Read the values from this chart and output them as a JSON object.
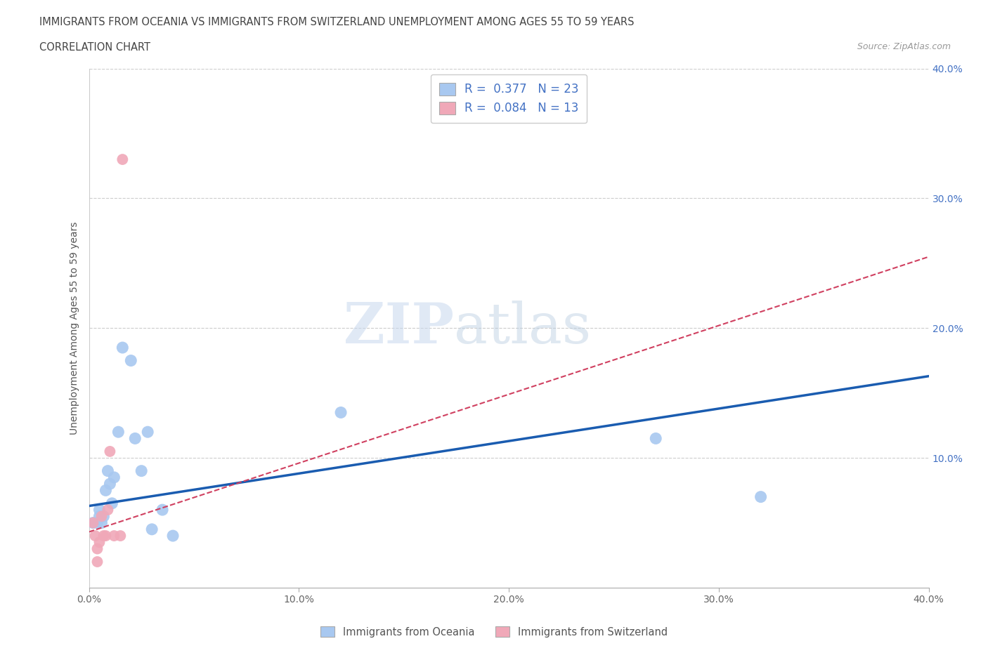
{
  "title_line1": "IMMIGRANTS FROM OCEANIA VS IMMIGRANTS FROM SWITZERLAND UNEMPLOYMENT AMONG AGES 55 TO 59 YEARS",
  "title_line2": "CORRELATION CHART",
  "source_text": "Source: ZipAtlas.com",
  "ylabel": "Unemployment Among Ages 55 to 59 years",
  "xlim": [
    0.0,
    0.4
  ],
  "ylim": [
    0.0,
    0.4
  ],
  "xtick_labels": [
    "0.0%",
    "10.0%",
    "20.0%",
    "30.0%",
    "40.0%"
  ],
  "xtick_vals": [
    0.0,
    0.1,
    0.2,
    0.3,
    0.4
  ],
  "right_ytick_labels": [
    "10.0%",
    "20.0%",
    "30.0%",
    "40.0%"
  ],
  "right_ytick_vals": [
    0.1,
    0.2,
    0.3,
    0.4
  ],
  "oceania_color": "#a8c8f0",
  "switzerland_color": "#f0a8b8",
  "oceania_R": 0.377,
  "oceania_N": 23,
  "switzerland_R": 0.084,
  "switzerland_N": 13,
  "oceania_line_color": "#1a5cb0",
  "switzerland_line_color": "#d04060",
  "watermark_zip": "ZIP",
  "watermark_atlas": "atlas",
  "watermark_color_zip": "#c8d8ee",
  "watermark_color_atlas": "#b8cce0",
  "legend_R_color": "#4472c4",
  "oceania_x": [
    0.002,
    0.004,
    0.005,
    0.005,
    0.006,
    0.007,
    0.008,
    0.009,
    0.01,
    0.011,
    0.012,
    0.014,
    0.016,
    0.02,
    0.022,
    0.025,
    0.028,
    0.03,
    0.035,
    0.04,
    0.12,
    0.27,
    0.32
  ],
  "oceania_y": [
    0.05,
    0.05,
    0.055,
    0.06,
    0.05,
    0.055,
    0.075,
    0.09,
    0.08,
    0.065,
    0.085,
    0.12,
    0.185,
    0.175,
    0.115,
    0.09,
    0.12,
    0.045,
    0.06,
    0.04,
    0.135,
    0.115,
    0.07
  ],
  "switzerland_x": [
    0.002,
    0.003,
    0.004,
    0.004,
    0.005,
    0.006,
    0.007,
    0.008,
    0.009,
    0.01,
    0.012,
    0.015,
    0.016
  ],
  "switzerland_y": [
    0.05,
    0.04,
    0.03,
    0.02,
    0.035,
    0.055,
    0.04,
    0.04,
    0.06,
    0.105,
    0.04,
    0.04,
    0.33
  ],
  "oceania_trend_x0": 0.0,
  "oceania_trend_x1": 0.4,
  "oceania_trend_y0": 0.063,
  "oceania_trend_y1": 0.163,
  "switzerland_trend_x0": 0.0,
  "switzerland_trend_x1": 0.4,
  "switzerland_trend_y0": 0.043,
  "switzerland_trend_y1": 0.255
}
